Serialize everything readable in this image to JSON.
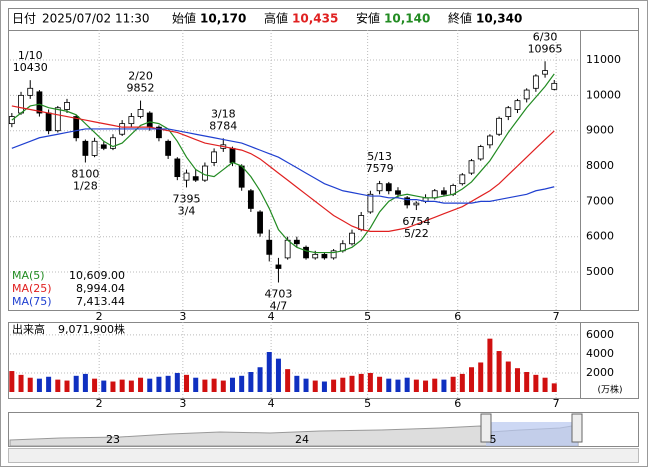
{
  "header": {
    "date_label": "日付",
    "date": "2025/07/02 11:30",
    "open_label": "始値",
    "open": "10,170",
    "high_label": "高値",
    "high": "10,435",
    "low_label": "安値",
    "low": "10,140",
    "close_label": "終値",
    "close": "10,340"
  },
  "chart_data": [
    {
      "type": "candlestick",
      "up_color": "#ffffff",
      "down_color": "#000000",
      "grid": true,
      "candles": [
        [
          9200,
          9500,
          9100,
          9400
        ],
        [
          9500,
          10100,
          9450,
          10000
        ],
        [
          10000,
          10430,
          9900,
          10200
        ],
        [
          10100,
          10150,
          9400,
          9500
        ],
        [
          9500,
          9600,
          8900,
          9000
        ],
        [
          9000,
          9700,
          8950,
          9650
        ],
        [
          9600,
          9900,
          9500,
          9800
        ],
        [
          9400,
          9450,
          8700,
          8800
        ],
        [
          8700,
          8750,
          8100,
          8300
        ],
        [
          8300,
          8800,
          8250,
          8700
        ],
        [
          8600,
          8700,
          8450,
          8500
        ],
        [
          8500,
          8900,
          8450,
          8800
        ],
        [
          8900,
          9300,
          8850,
          9200
        ],
        [
          9200,
          9500,
          9100,
          9400
        ],
        [
          9400,
          9852,
          9350,
          9600
        ],
        [
          9500,
          9550,
          9000,
          9100
        ],
        [
          9100,
          9150,
          8700,
          8800
        ],
        [
          8700,
          8750,
          8200,
          8300
        ],
        [
          8200,
          8250,
          7600,
          7700
        ],
        [
          7600,
          7900,
          7395,
          7800
        ],
        [
          7700,
          7900,
          7550,
          7600
        ],
        [
          7600,
          8100,
          7550,
          8000
        ],
        [
          8100,
          8500,
          8000,
          8400
        ],
        [
          8500,
          8784,
          8400,
          8600
        ],
        [
          8500,
          8550,
          8000,
          8100
        ],
        [
          8000,
          8050,
          7300,
          7400
        ],
        [
          7300,
          7350,
          6700,
          6800
        ],
        [
          6700,
          6750,
          6000,
          6100
        ],
        [
          5900,
          6200,
          5300,
          5500
        ],
        [
          5200,
          5400,
          4703,
          5100
        ],
        [
          5400,
          6000,
          5350,
          5900
        ],
        [
          5900,
          6000,
          5700,
          5800
        ],
        [
          5700,
          5750,
          5350,
          5400
        ],
        [
          5400,
          5600,
          5350,
          5500
        ],
        [
          5500,
          5550,
          5350,
          5400
        ],
        [
          5400,
          5650,
          5350,
          5600
        ],
        [
          5600,
          5900,
          5550,
          5800
        ],
        [
          5800,
          6200,
          5750,
          6100
        ],
        [
          6200,
          6700,
          6150,
          6600
        ],
        [
          6700,
          7300,
          6650,
          7200
        ],
        [
          7300,
          7579,
          7200,
          7500
        ],
        [
          7500,
          7550,
          7200,
          7300
        ],
        [
          7300,
          7400,
          7100,
          7200
        ],
        [
          7100,
          7150,
          6800,
          6900
        ],
        [
          6900,
          7000,
          6754,
          6950
        ],
        [
          7000,
          7200,
          6950,
          7100
        ],
        [
          7100,
          7350,
          7050,
          7300
        ],
        [
          7300,
          7400,
          7150,
          7200
        ],
        [
          7200,
          7500,
          7150,
          7450
        ],
        [
          7500,
          7800,
          7450,
          7750
        ],
        [
          7800,
          8200,
          7750,
          8150
        ],
        [
          8200,
          8600,
          8150,
          8550
        ],
        [
          8600,
          8900,
          8500,
          8850
        ],
        [
          8900,
          9400,
          8850,
          9350
        ],
        [
          9400,
          9700,
          9300,
          9650
        ],
        [
          9600,
          9900,
          9500,
          9850
        ],
        [
          9900,
          10200,
          9800,
          10150
        ],
        [
          10200,
          10600,
          10100,
          10550
        ],
        [
          10600,
          10965,
          10500,
          10700
        ],
        [
          10170,
          10435,
          10140,
          10340
        ]
      ],
      "series": [
        {
          "name": "MA(5)",
          "current": "10,609.00",
          "color": "#228b22",
          "values": [
            9300,
            9500,
            9700,
            9750,
            9650,
            9600,
            9550,
            9450,
            9200,
            8950,
            8700,
            8550,
            8650,
            8900,
            9150,
            9250,
            9200,
            9050,
            8700,
            8250,
            7900,
            7750,
            7700,
            7900,
            8100,
            8000,
            7700,
            7300,
            6800,
            6200,
            5900,
            5700,
            5600,
            5550,
            5550,
            5550,
            5600,
            5700,
            5900,
            6250,
            6700,
            7000,
            7150,
            7200,
            7150,
            7100,
            7100,
            7150,
            7200,
            7350,
            7550,
            7850,
            8150,
            8550,
            8950,
            9300,
            9650,
            9950,
            10250,
            10609
          ]
        },
        {
          "name": "MA(25)",
          "current": "8,994.04",
          "color": "#e02020",
          "values": [
            9700,
            9650,
            9600,
            9550,
            9500,
            9450,
            9400,
            9350,
            9300,
            9250,
            9200,
            9150,
            9100,
            9100,
            9100,
            9100,
            9050,
            9000,
            8950,
            8850,
            8750,
            8650,
            8600,
            8550,
            8500,
            8450,
            8350,
            8200,
            8000,
            7800,
            7600,
            7400,
            7200,
            7000,
            6800,
            6600,
            6450,
            6300,
            6200,
            6150,
            6150,
            6150,
            6200,
            6250,
            6350,
            6450,
            6550,
            6650,
            6750,
            6850,
            7000,
            7150,
            7300,
            7500,
            7750,
            8000,
            8250,
            8500,
            8750,
            8994.04
          ]
        },
        {
          "name": "MA(75)",
          "current": "7,413.44",
          "color": "#2040d0",
          "values": [
            8500,
            8600,
            8700,
            8800,
            8850,
            8900,
            8950,
            9000,
            9050,
            9050,
            9050,
            9050,
            9050,
            9050,
            9050,
            9050,
            9050,
            9050,
            9000,
            8950,
            8900,
            8850,
            8800,
            8750,
            8700,
            8650,
            8550,
            8450,
            8350,
            8250,
            8100,
            7950,
            7800,
            7650,
            7500,
            7400,
            7300,
            7250,
            7200,
            7150,
            7150,
            7100,
            7100,
            7050,
            7050,
            7000,
            7000,
            6950,
            6950,
            6950,
            6950,
            7000,
            7000,
            7050,
            7100,
            7150,
            7200,
            7300,
            7350,
            7413.44
          ]
        }
      ],
      "ylim": [
        3925,
        11850
      ],
      "yticks": [
        5000,
        6000,
        7000,
        8000,
        9000,
        10000,
        11000
      ],
      "xlim": [
        -0.2,
        61.8
      ],
      "xticks": [
        {
          "value": 9.5,
          "label": "2"
        },
        {
          "value": 18.6,
          "label": "3"
        },
        {
          "value": 28.2,
          "label": "4"
        },
        {
          "value": 38.7,
          "label": "5"
        },
        {
          "value": 48.5,
          "label": "6"
        },
        {
          "value": 59.2,
          "label": "7"
        }
      ],
      "annotations": [
        {
          "x": 2,
          "date": "1/10",
          "value": 10430,
          "pos": "above"
        },
        {
          "x": 8,
          "date": "1/28",
          "value": 8100,
          "pos": "below"
        },
        {
          "x": 14,
          "date": "2/20",
          "value": 9852,
          "pos": "above"
        },
        {
          "x": 19,
          "date": "3/4",
          "value": 7395,
          "pos": "below"
        },
        {
          "x": 23,
          "date": "3/18",
          "value": 8784,
          "pos": "above"
        },
        {
          "x": 29,
          "date": "4/7",
          "value": 4703,
          "pos": "below"
        },
        {
          "x": 40,
          "date": "5/13",
          "value": 7579,
          "pos": "above"
        },
        {
          "x": 44,
          "date": "5/22",
          "value": 6754,
          "pos": "below"
        },
        {
          "x": 58,
          "date": "6/30",
          "value": 10965,
          "pos": "above"
        }
      ]
    },
    {
      "type": "bar",
      "title": "出来高",
      "current": "9,071,900株",
      "unit": "(万株)",
      "up_color": "#d01010",
      "down_color": "#1030c0",
      "grid": true,
      "values": [
        2200,
        1800,
        1500,
        1400,
        1600,
        1300,
        1200,
        1700,
        1900,
        1400,
        1200,
        1100,
        1300,
        1200,
        1500,
        1400,
        1600,
        1700,
        2000,
        1800,
        1500,
        1300,
        1400,
        1200,
        1500,
        1700,
        2100,
        2600,
        4200,
        3500,
        2400,
        1700,
        1400,
        1200,
        1100,
        1300,
        1500,
        1700,
        1900,
        2000,
        1600,
        1400,
        1300,
        1500,
        1300,
        1200,
        1400,
        1300,
        1600,
        1900,
        2600,
        3100,
        5600,
        4300,
        3200,
        2500,
        2100,
        1800,
        1500,
        907.19
      ],
      "ylim": [
        0,
        6300
      ],
      "yticks": [
        2000,
        4000,
        6000
      ]
    }
  ],
  "navigator": {
    "labels": [
      "23",
      "24",
      "5"
    ]
  }
}
